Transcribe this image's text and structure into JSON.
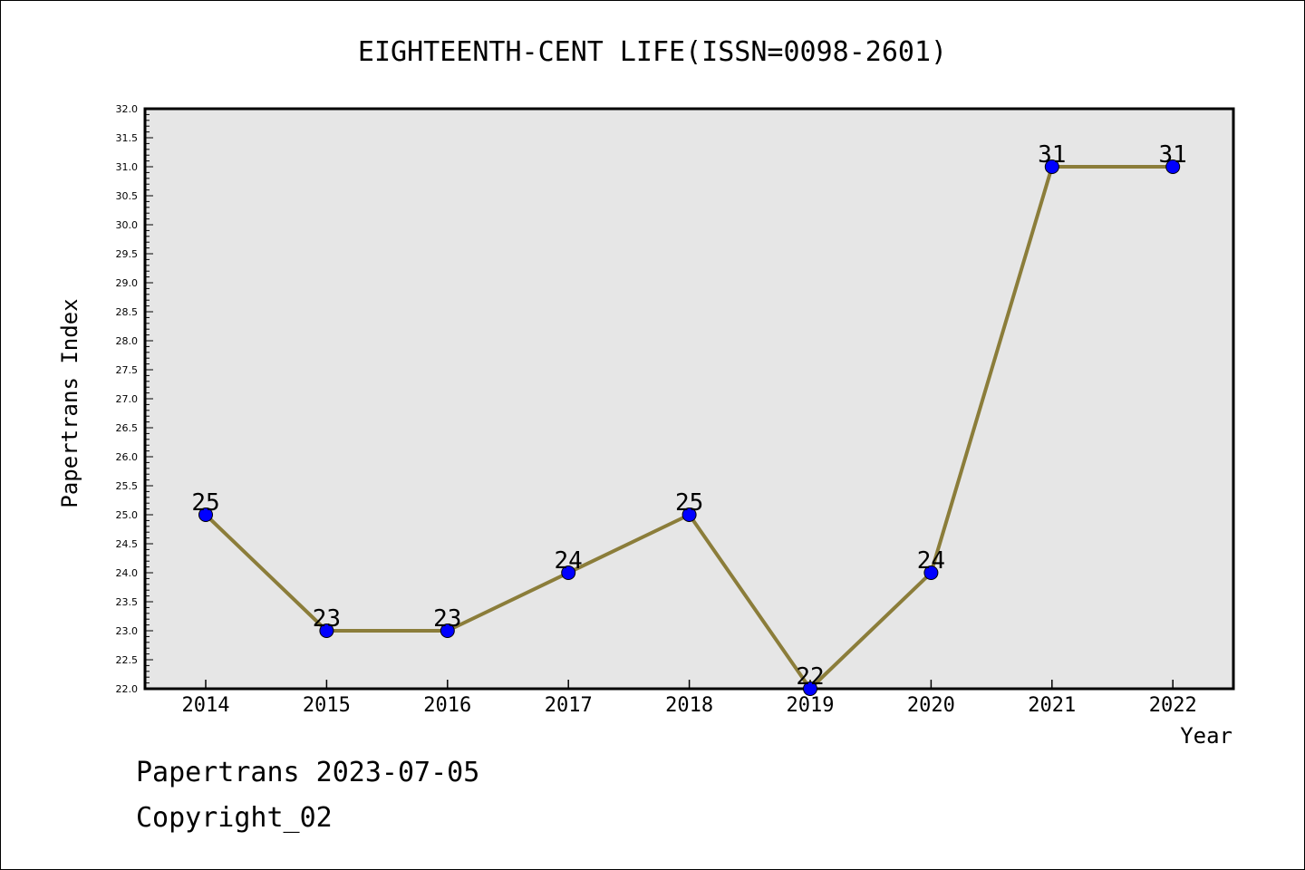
{
  "chart_data": {
    "type": "line",
    "title": "EIGHTEENTH-CENT LIFE(ISSN=0098-2601)",
    "xlabel": "Year",
    "ylabel": "Papertrans Index",
    "categories": [
      "2014",
      "2015",
      "2016",
      "2017",
      "2018",
      "2019",
      "2020",
      "2021",
      "2022"
    ],
    "series": [
      {
        "values": [
          25,
          23,
          23,
          24,
          25,
          22,
          24,
          31,
          31
        ]
      }
    ],
    "data_labels": [
      "25",
      "23",
      "23",
      "24",
      "25",
      "22",
      "24",
      "31",
      "31"
    ],
    "ylim": [
      22.0,
      32.0
    ],
    "y_tick_labels": [
      "22.0",
      "22.5",
      "23.0",
      "23.5",
      "24.0",
      "24.5",
      "25.0",
      "25.5",
      "26.0",
      "26.5",
      "27.0",
      "27.5",
      "28.0",
      "28.5",
      "29.0",
      "29.5",
      "30.0",
      "30.5",
      "31.0",
      "31.5",
      "32.0"
    ],
    "grid": false,
    "legend": "none",
    "colors": {
      "line": "#8B7D3A",
      "marker": "#0000FF",
      "plot_background": "#E6E6E6"
    }
  },
  "footer": {
    "date_line": "Papertrans 2023-07-05",
    "copyright": "Copyright_02"
  }
}
